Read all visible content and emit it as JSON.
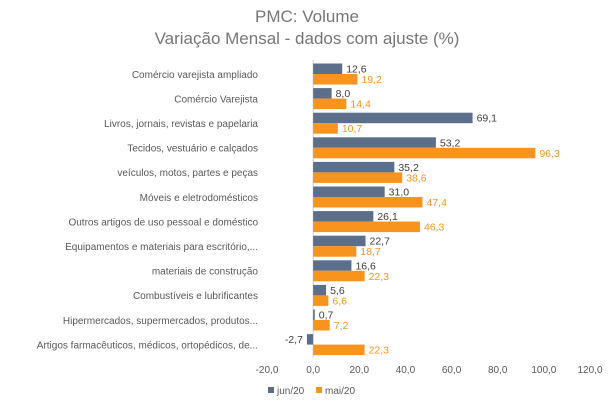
{
  "chart_data": {
    "type": "bar",
    "orientation": "horizontal",
    "title": "PMC: Volume",
    "subtitle": "Variação Mensal - dados com ajuste (%)",
    "categories": [
      "Comércio varejista ampliado",
      "Comércio Varejista",
      "Livros, jornais, revistas e papelaria",
      "Tecidos, vestuário e calçados",
      "veículos, motos, partes e peças",
      "Móveis e eletrodomésticos",
      "Outros artigos de uso pessoal e doméstico",
      "Equipamentos e materiais para escritório,...",
      "materiais de construção",
      "Combustíveis e lubrificantes",
      "Hipermercados, supermercados, produtos...",
      "Artigos farmacêuticos, médicos, ortopédicos, de..."
    ],
    "series": [
      {
        "name": "jun/20",
        "color": "#5b6f8a",
        "values": [
          12.6,
          8.0,
          69.1,
          53.2,
          35.2,
          31.0,
          26.1,
          22.7,
          16.6,
          5.6,
          0.7,
          -2.7
        ],
        "labels": [
          "12,6",
          "8,0",
          "69,1",
          "53,2",
          "35,2",
          "31,0",
          "26,1",
          "22,7",
          "16,6",
          "5,6",
          "0,7",
          "-2,7"
        ]
      },
      {
        "name": "mai/20",
        "color": "#f7941d",
        "values": [
          19.2,
          14.4,
          10.7,
          96.3,
          38.6,
          47.4,
          46.3,
          18.7,
          22.3,
          6.6,
          7.2,
          22.3
        ],
        "labels": [
          "19,2",
          "14,4",
          "10,7",
          "96,3",
          "38,6",
          "47,4",
          "46,3",
          "18,7",
          "22,3",
          "6,6",
          "7,2",
          "22,3"
        ]
      }
    ],
    "xlim": [
      -20,
      120
    ],
    "xticks": [
      -20,
      0,
      20,
      40,
      60,
      80,
      100,
      120
    ],
    "xtick_labels": [
      "-20,0",
      "0,0",
      "20,0",
      "40,0",
      "60,0",
      "80,0",
      "100,0",
      "120,0"
    ],
    "grid": false,
    "legend_position": "bottom"
  }
}
